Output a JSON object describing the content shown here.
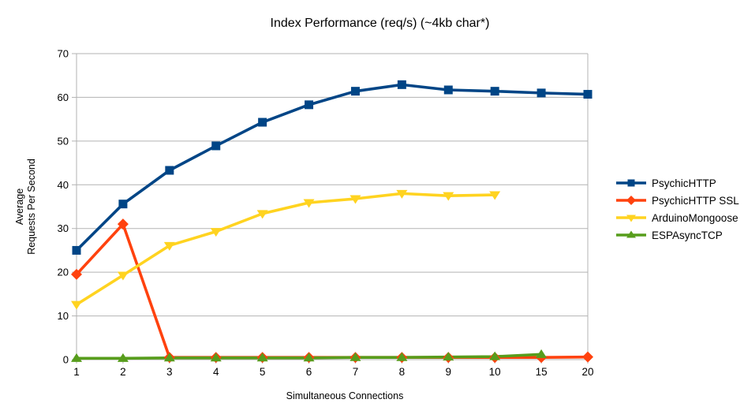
{
  "chart_data": {
    "type": "line",
    "title": "Index Performance (req/s) (~4kb char*)",
    "xlabel": "Simultaneous Connections",
    "ylabel_line1": "Average",
    "ylabel_line2": "Requests Per Second",
    "categories": [
      "1",
      "2",
      "3",
      "4",
      "5",
      "6",
      "7",
      "8",
      "9",
      "10",
      "15",
      "20"
    ],
    "y_ticks": [
      0,
      10,
      20,
      30,
      40,
      50,
      60,
      70
    ],
    "ylim": [
      0,
      70
    ],
    "grid": "horizontal",
    "legend_position": "right",
    "series": [
      {
        "name": "PsychicHTTP",
        "color": "#004586",
        "marker": "square",
        "values": [
          25.0,
          35.6,
          43.3,
          48.9,
          54.3,
          58.3,
          61.4,
          62.9,
          61.7,
          61.4,
          61.0,
          60.7
        ]
      },
      {
        "name": "PsychicHTTP SSL",
        "color": "#ff420e",
        "marker": "diamond",
        "values": [
          19.5,
          31.0,
          0.5,
          0.5,
          0.5,
          0.5,
          0.5,
          0.5,
          0.5,
          0.5,
          0.5,
          0.6
        ]
      },
      {
        "name": "ArduinoMongoose",
        "color": "#ffd320",
        "marker": "triangle-down",
        "values": [
          12.6,
          19.3,
          26.1,
          29.3,
          33.4,
          35.9,
          36.8,
          38.0,
          37.5,
          37.7,
          null,
          null
        ]
      },
      {
        "name": "ESPAsyncTCP",
        "color": "#579d1c",
        "marker": "triangle-up",
        "values": [
          0.3,
          0.3,
          0.4,
          0.4,
          0.4,
          0.4,
          0.5,
          0.5,
          0.6,
          0.7,
          1.2,
          null
        ]
      }
    ]
  },
  "colors": {
    "background": "#ffffff",
    "grid": "#b3b3b3",
    "axis": "#b3b3b3",
    "text": "#000000"
  }
}
